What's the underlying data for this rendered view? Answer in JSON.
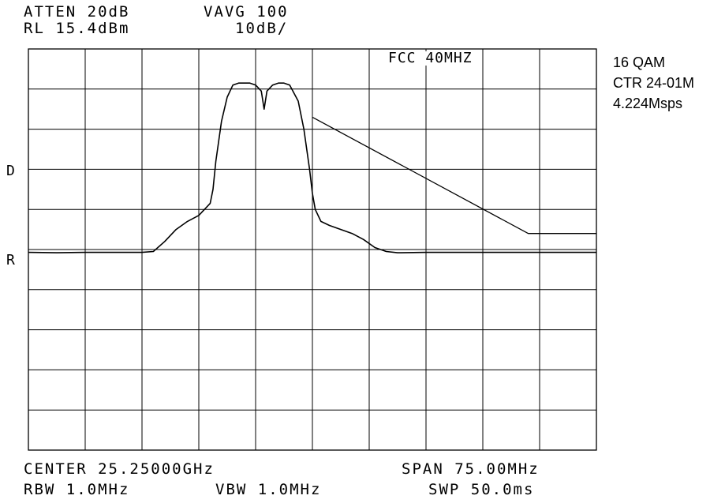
{
  "header": {
    "atten": "ATTEN 20dB",
    "vavg": "VAVG 100",
    "ref_level": "RL 15.4dBm",
    "scale": "10dB/"
  },
  "grid_annotation": "FCC 40MHZ",
  "side_note": {
    "modulation": "16 QAM",
    "center_ref": "CTR 24-01M",
    "symbol_rate": "4.224Msps"
  },
  "markers": {
    "d": "D",
    "r": "R"
  },
  "footer": {
    "center": "CENTER 25.25000GHz",
    "span": "SPAN 75.00MHz",
    "rbw": "RBW 1.0MHz",
    "vbw": "VBW 1.0MHz",
    "sweep": "SWP 50.0ms"
  },
  "chart_data": {
    "type": "line",
    "x_divisions": 10,
    "y_divisions": 10,
    "series": [
      {
        "values": [
          [
            0.0,
            5.07
          ],
          [
            0.5,
            5.08
          ],
          [
            1.0,
            5.07
          ],
          [
            1.5,
            5.07
          ],
          [
            2.0,
            5.07
          ],
          [
            2.2,
            5.05
          ],
          [
            2.4,
            4.8
          ],
          [
            2.6,
            4.5
          ],
          [
            2.8,
            4.3
          ],
          [
            3.0,
            4.15
          ],
          [
            3.1,
            4.0
          ],
          [
            3.2,
            3.85
          ],
          [
            3.25,
            3.5
          ],
          [
            3.3,
            2.8
          ],
          [
            3.4,
            1.8
          ],
          [
            3.5,
            1.2
          ],
          [
            3.6,
            0.9
          ],
          [
            3.7,
            0.85
          ],
          [
            3.8,
            0.85
          ],
          [
            3.9,
            0.85
          ],
          [
            4.0,
            0.9
          ],
          [
            4.1,
            1.05
          ],
          [
            4.15,
            1.5
          ],
          [
            4.2,
            1.05
          ],
          [
            4.3,
            0.9
          ],
          [
            4.4,
            0.85
          ],
          [
            4.5,
            0.85
          ],
          [
            4.6,
            0.9
          ],
          [
            4.75,
            1.3
          ],
          [
            4.85,
            2.0
          ],
          [
            4.95,
            3.0
          ],
          [
            5.0,
            3.6
          ],
          [
            5.05,
            4.0
          ],
          [
            5.15,
            4.3
          ],
          [
            5.3,
            4.4
          ],
          [
            5.5,
            4.5
          ],
          [
            5.7,
            4.6
          ],
          [
            5.9,
            4.75
          ],
          [
            6.1,
            4.95
          ],
          [
            6.3,
            5.05
          ],
          [
            6.5,
            5.08
          ],
          [
            7.0,
            5.07
          ],
          [
            7.5,
            5.07
          ],
          [
            8.0,
            5.07
          ],
          [
            8.5,
            5.07
          ],
          [
            9.0,
            5.07
          ],
          [
            9.5,
            5.07
          ],
          [
            10.0,
            5.07
          ]
        ]
      },
      {
        "values": [
          [
            5.0,
            1.7
          ],
          [
            8.8,
            4.6
          ],
          [
            10.0,
            4.6
          ]
        ]
      }
    ]
  }
}
